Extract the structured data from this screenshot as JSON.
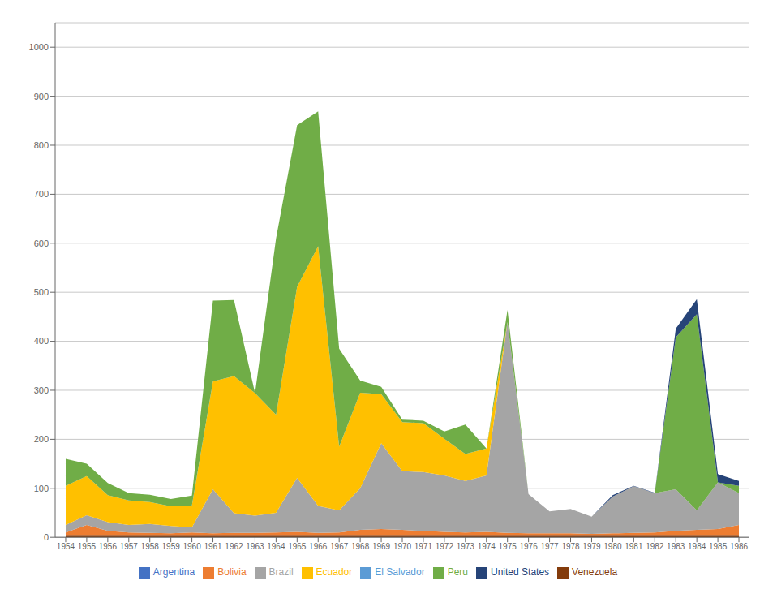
{
  "chart_data": {
    "type": "area",
    "stacked": true,
    "grid": true,
    "legend": "bottom",
    "x": [
      1954,
      1955,
      1956,
      1957,
      1958,
      1959,
      1960,
      1961,
      1962,
      1963,
      1964,
      1965,
      1966,
      1967,
      1968,
      1969,
      1970,
      1971,
      1972,
      1973,
      1974,
      1975,
      1976,
      1977,
      1978,
      1979,
      1980,
      1981,
      1982,
      1983,
      1984,
      1985,
      1986
    ],
    "xlim": [
      1953.5,
      1986.5
    ],
    "xticks": [
      1954,
      1955,
      1956,
      1957,
      1958,
      1959,
      1960,
      1961,
      1962,
      1963,
      1964,
      1965,
      1966,
      1967,
      1968,
      1969,
      1970,
      1971,
      1972,
      1973,
      1974,
      1975,
      1976,
      1977,
      1978,
      1979,
      1980,
      1981,
      1982,
      1983,
      1984,
      1985,
      1986
    ],
    "ylim": [
      0,
      1050
    ],
    "yticks": [
      0,
      100,
      200,
      300,
      400,
      500,
      600,
      700,
      800,
      900,
      1000
    ],
    "series": [
      {
        "name": "Venezuela",
        "color": "#843c0c",
        "values": [
          5,
          5,
          5,
          5,
          5,
          5,
          5,
          5,
          5,
          5,
          5,
          5,
          5,
          5,
          5,
          5,
          5,
          5,
          5,
          5,
          5,
          5,
          5,
          5,
          5,
          5,
          5,
          5,
          5,
          5,
          5,
          5,
          5
        ]
      },
      {
        "name": "Bolivia",
        "color": "#ed7d31",
        "values": [
          5,
          20,
          8,
          5,
          4,
          3,
          5,
          3,
          4,
          4,
          5,
          6,
          4,
          5,
          10,
          12,
          10,
          8,
          6,
          5,
          6,
          4,
          3,
          3,
          3,
          2,
          3,
          4,
          5,
          8,
          10,
          12,
          20
        ]
      },
      {
        "name": "Brazil",
        "color": "#a5a5a5",
        "values": [
          15,
          20,
          18,
          15,
          18,
          15,
          10,
          90,
          40,
          35,
          40,
          110,
          55,
          45,
          85,
          175,
          120,
          120,
          115,
          105,
          115,
          430,
          80,
          45,
          50,
          35,
          75,
          95,
          80,
          85,
          40,
          95,
          65
        ]
      },
      {
        "name": "Ecuador",
        "color": "#ffc000",
        "values": [
          80,
          80,
          55,
          50,
          45,
          40,
          45,
          220,
          280,
          250,
          200,
          390,
          530,
          130,
          195,
          100,
          100,
          100,
          75,
          55,
          55,
          0,
          0,
          0,
          0,
          0,
          0,
          0,
          0,
          0,
          0,
          0,
          0
        ]
      },
      {
        "name": "El Salvador",
        "color": "#5b9bd5",
        "values": [
          0,
          0,
          0,
          0,
          0,
          0,
          0,
          0,
          0,
          0,
          0,
          0,
          0,
          0,
          0,
          0,
          0,
          0,
          0,
          0,
          0,
          0,
          0,
          0,
          0,
          0,
          0,
          0,
          0,
          0,
          0,
          0,
          0
        ]
      },
      {
        "name": "Peru",
        "color": "#70ad47",
        "values": [
          55,
          25,
          25,
          15,
          15,
          15,
          20,
          165,
          155,
          0,
          360,
          330,
          275,
          200,
          25,
          15,
          5,
          5,
          15,
          60,
          0,
          25,
          0,
          0,
          0,
          0,
          0,
          0,
          0,
          310,
          400,
          0,
          15
        ]
      },
      {
        "name": "United States",
        "color": "#264478",
        "values": [
          0,
          0,
          0,
          0,
          0,
          0,
          0,
          0,
          0,
          0,
          0,
          0,
          0,
          0,
          0,
          0,
          0,
          0,
          0,
          0,
          0,
          0,
          0,
          0,
          0,
          0,
          3,
          1,
          1,
          18,
          31,
          17,
          10
        ]
      },
      {
        "name": "Argentina",
        "color": "#4472c4",
        "values": [
          0,
          0,
          0,
          0,
          0,
          0,
          0,
          0,
          0,
          0,
          0,
          0,
          0,
          0,
          0,
          0,
          0,
          0,
          0,
          0,
          0,
          0,
          0,
          0,
          0,
          0,
          0,
          0,
          0,
          0,
          0,
          0,
          0
        ]
      }
    ]
  }
}
